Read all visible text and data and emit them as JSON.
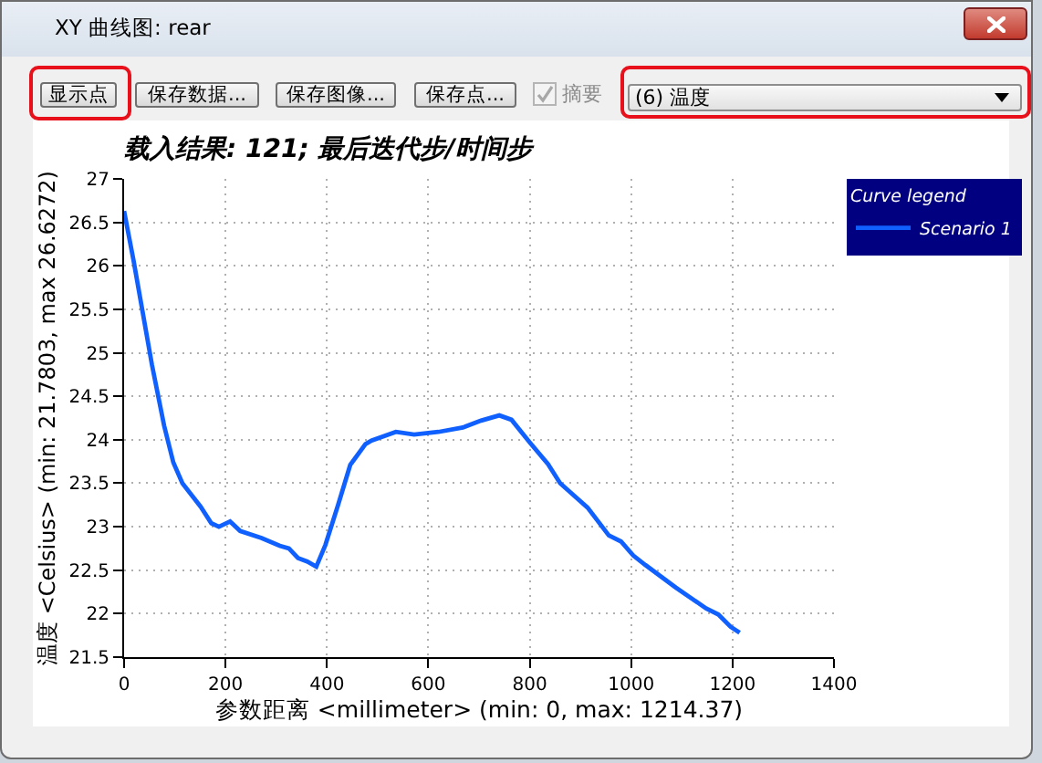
{
  "chart_data": {
    "type": "line",
    "title": "载入结果: 121; 最后迭代步/时间步",
    "xlabel": "参数距离 <millimeter> (min: 0, max: 1214.37)",
    "ylabel": "温度 <Celsius> (min: 21.7803, max 26.6272)",
    "legend_title": "Curve legend",
    "annotations": [
      "XY 曲线图: rear",
      "显示点",
      "保存数据...",
      "保存图像...",
      "保存点...",
      "摘要",
      "(6) 温度"
    ],
    "x": [
      0,
      19,
      55,
      79,
      97,
      115,
      151,
      172,
      187,
      209,
      229,
      271,
      307,
      325,
      343,
      361,
      379,
      397,
      422,
      446,
      476,
      488,
      536,
      572,
      620,
      668,
      704,
      740,
      764,
      800,
      836,
      860,
      914,
      956,
      980,
      1004,
      1028,
      1088,
      1148,
      1172,
      1196,
      1214
    ],
    "series": [
      {
        "name": "Scenario 1",
        "color": "#1060ff",
        "values": [
          26.63,
          26.05,
          24.86,
          24.16,
          23.74,
          23.5,
          23.23,
          23.04,
          23.0,
          23.06,
          22.95,
          22.87,
          22.78,
          22.75,
          22.64,
          22.6,
          22.54,
          22.79,
          23.25,
          23.71,
          23.95,
          23.99,
          24.09,
          24.06,
          24.09,
          24.14,
          24.22,
          24.28,
          24.23,
          23.97,
          23.72,
          23.5,
          23.22,
          22.9,
          22.83,
          22.67,
          22.56,
          22.3,
          22.06,
          21.99,
          21.85,
          21.78
        ]
      }
    ],
    "xlim": [
      0,
      1400
    ],
    "xticks": [
      0,
      200,
      400,
      600,
      800,
      1000,
      1200,
      1400
    ],
    "ylim": [
      21.5,
      27
    ],
    "yticks": [
      21.5,
      22,
      22.5,
      23,
      23.5,
      24,
      24.5,
      25,
      25.5,
      26,
      26.5,
      27
    ],
    "grid": true,
    "legend": "top right"
  }
}
